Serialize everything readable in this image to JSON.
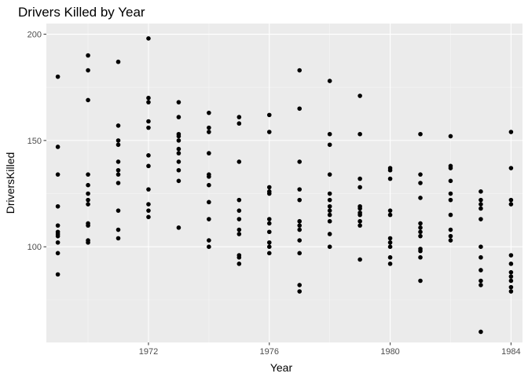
{
  "chart_data": {
    "type": "scatter",
    "title": "Drivers Killed by Year",
    "xlabel": "Year",
    "ylabel": "DriversKilled",
    "xlim": [
      1968.62,
      1984.38
    ],
    "ylim": [
      55,
      205
    ],
    "x_ticks": [
      1972,
      1976,
      1980,
      1984
    ],
    "y_ticks": [
      100,
      150,
      200
    ],
    "grid": true,
    "legend": "none",
    "colors": {
      "panel": "#ebebeb",
      "grid_major": "#ffffff",
      "grid_minor": "#f5f5f5",
      "point": "#000000",
      "tick": "#333333"
    },
    "points": [
      {
        "x": 1969,
        "y": 180
      },
      {
        "x": 1969,
        "y": 147
      },
      {
        "x": 1969,
        "y": 134
      },
      {
        "x": 1969,
        "y": 119
      },
      {
        "x": 1969,
        "y": 110
      },
      {
        "x": 1969,
        "y": 107
      },
      {
        "x": 1969,
        "y": 106
      },
      {
        "x": 1969,
        "y": 105
      },
      {
        "x": 1969,
        "y": 102
      },
      {
        "x": 1969,
        "y": 97
      },
      {
        "x": 1969,
        "y": 87
      },
      {
        "x": 1970,
        "y": 190
      },
      {
        "x": 1970,
        "y": 183
      },
      {
        "x": 1970,
        "y": 169
      },
      {
        "x": 1970,
        "y": 134
      },
      {
        "x": 1970,
        "y": 129
      },
      {
        "x": 1970,
        "y": 125
      },
      {
        "x": 1970,
        "y": 122
      },
      {
        "x": 1970,
        "y": 120
      },
      {
        "x": 1970,
        "y": 111
      },
      {
        "x": 1970,
        "y": 110
      },
      {
        "x": 1970,
        "y": 103
      },
      {
        "x": 1970,
        "y": 102
      },
      {
        "x": 1971,
        "y": 187
      },
      {
        "x": 1971,
        "y": 157
      },
      {
        "x": 1971,
        "y": 150
      },
      {
        "x": 1971,
        "y": 148
      },
      {
        "x": 1971,
        "y": 140
      },
      {
        "x": 1971,
        "y": 136
      },
      {
        "x": 1971,
        "y": 134
      },
      {
        "x": 1971,
        "y": 130
      },
      {
        "x": 1971,
        "y": 117
      },
      {
        "x": 1971,
        "y": 108
      },
      {
        "x": 1971,
        "y": 104
      },
      {
        "x": 1972,
        "y": 198
      },
      {
        "x": 1972,
        "y": 170
      },
      {
        "x": 1972,
        "y": 168
      },
      {
        "x": 1972,
        "y": 159
      },
      {
        "x": 1972,
        "y": 156
      },
      {
        "x": 1972,
        "y": 143
      },
      {
        "x": 1972,
        "y": 138
      },
      {
        "x": 1972,
        "y": 127
      },
      {
        "x": 1972,
        "y": 120
      },
      {
        "x": 1972,
        "y": 117
      },
      {
        "x": 1972,
        "y": 114
      },
      {
        "x": 1973,
        "y": 168
      },
      {
        "x": 1973,
        "y": 161
      },
      {
        "x": 1973,
        "y": 153
      },
      {
        "x": 1973,
        "y": 152
      },
      {
        "x": 1973,
        "y": 150
      },
      {
        "x": 1973,
        "y": 146
      },
      {
        "x": 1973,
        "y": 144
      },
      {
        "x": 1973,
        "y": 140
      },
      {
        "x": 1973,
        "y": 136
      },
      {
        "x": 1973,
        "y": 131
      },
      {
        "x": 1973,
        "y": 109
      },
      {
        "x": 1974,
        "y": 163
      },
      {
        "x": 1974,
        "y": 156
      },
      {
        "x": 1974,
        "y": 154
      },
      {
        "x": 1974,
        "y": 144
      },
      {
        "x": 1974,
        "y": 134
      },
      {
        "x": 1974,
        "y": 133
      },
      {
        "x": 1974,
        "y": 129
      },
      {
        "x": 1974,
        "y": 121
      },
      {
        "x": 1974,
        "y": 113
      },
      {
        "x": 1974,
        "y": 103
      },
      {
        "x": 1974,
        "y": 100
      },
      {
        "x": 1975,
        "y": 161
      },
      {
        "x": 1975,
        "y": 158
      },
      {
        "x": 1975,
        "y": 140
      },
      {
        "x": 1975,
        "y": 122
      },
      {
        "x": 1975,
        "y": 117
      },
      {
        "x": 1975,
        "y": 113
      },
      {
        "x": 1975,
        "y": 108
      },
      {
        "x": 1975,
        "y": 106
      },
      {
        "x": 1975,
        "y": 96
      },
      {
        "x": 1975,
        "y": 95
      },
      {
        "x": 1975,
        "y": 92
      },
      {
        "x": 1976,
        "y": 162
      },
      {
        "x": 1976,
        "y": 154
      },
      {
        "x": 1976,
        "y": 128
      },
      {
        "x": 1976,
        "y": 126
      },
      {
        "x": 1976,
        "y": 125
      },
      {
        "x": 1976,
        "y": 113
      },
      {
        "x": 1976,
        "y": 111
      },
      {
        "x": 1976,
        "y": 107
      },
      {
        "x": 1976,
        "y": 102
      },
      {
        "x": 1976,
        "y": 100
      },
      {
        "x": 1976,
        "y": 97
      },
      {
        "x": 1977,
        "y": 183
      },
      {
        "x": 1977,
        "y": 165
      },
      {
        "x": 1977,
        "y": 140
      },
      {
        "x": 1977,
        "y": 127
      },
      {
        "x": 1977,
        "y": 122
      },
      {
        "x": 1977,
        "y": 112
      },
      {
        "x": 1977,
        "y": 110
      },
      {
        "x": 1977,
        "y": 108
      },
      {
        "x": 1977,
        "y": 103
      },
      {
        "x": 1977,
        "y": 97
      },
      {
        "x": 1977,
        "y": 82
      },
      {
        "x": 1977,
        "y": 79
      },
      {
        "x": 1978,
        "y": 178
      },
      {
        "x": 1978,
        "y": 153
      },
      {
        "x": 1978,
        "y": 148
      },
      {
        "x": 1978,
        "y": 134
      },
      {
        "x": 1978,
        "y": 125
      },
      {
        "x": 1978,
        "y": 122
      },
      {
        "x": 1978,
        "y": 119
      },
      {
        "x": 1978,
        "y": 117
      },
      {
        "x": 1978,
        "y": 115
      },
      {
        "x": 1978,
        "y": 112
      },
      {
        "x": 1978,
        "y": 106
      },
      {
        "x": 1978,
        "y": 100
      },
      {
        "x": 1979,
        "y": 171
      },
      {
        "x": 1979,
        "y": 153
      },
      {
        "x": 1979,
        "y": 132
      },
      {
        "x": 1979,
        "y": 128
      },
      {
        "x": 1979,
        "y": 119
      },
      {
        "x": 1979,
        "y": 118
      },
      {
        "x": 1979,
        "y": 116
      },
      {
        "x": 1979,
        "y": 115
      },
      {
        "x": 1979,
        "y": 112
      },
      {
        "x": 1979,
        "y": 110
      },
      {
        "x": 1979,
        "y": 94
      },
      {
        "x": 1980,
        "y": 137
      },
      {
        "x": 1980,
        "y": 136
      },
      {
        "x": 1980,
        "y": 132
      },
      {
        "x": 1980,
        "y": 117
      },
      {
        "x": 1980,
        "y": 115
      },
      {
        "x": 1980,
        "y": 104
      },
      {
        "x": 1980,
        "y": 102
      },
      {
        "x": 1980,
        "y": 100
      },
      {
        "x": 1980,
        "y": 95
      },
      {
        "x": 1980,
        "y": 92
      },
      {
        "x": 1981,
        "y": 153
      },
      {
        "x": 1981,
        "y": 134
      },
      {
        "x": 1981,
        "y": 130
      },
      {
        "x": 1981,
        "y": 123
      },
      {
        "x": 1981,
        "y": 111
      },
      {
        "x": 1981,
        "y": 109
      },
      {
        "x": 1981,
        "y": 107
      },
      {
        "x": 1981,
        "y": 105
      },
      {
        "x": 1981,
        "y": 99
      },
      {
        "x": 1981,
        "y": 98
      },
      {
        "x": 1981,
        "y": 95
      },
      {
        "x": 1981,
        "y": 84
      },
      {
        "x": 1982,
        "y": 152
      },
      {
        "x": 1982,
        "y": 138
      },
      {
        "x": 1982,
        "y": 137
      },
      {
        "x": 1982,
        "y": 131
      },
      {
        "x": 1982,
        "y": 125
      },
      {
        "x": 1982,
        "y": 122
      },
      {
        "x": 1982,
        "y": 115
      },
      {
        "x": 1982,
        "y": 108
      },
      {
        "x": 1982,
        "y": 105
      },
      {
        "x": 1982,
        "y": 103
      },
      {
        "x": 1983,
        "y": 126
      },
      {
        "x": 1983,
        "y": 122
      },
      {
        "x": 1983,
        "y": 120
      },
      {
        "x": 1983,
        "y": 118
      },
      {
        "x": 1983,
        "y": 113
      },
      {
        "x": 1983,
        "y": 100
      },
      {
        "x": 1983,
        "y": 95
      },
      {
        "x": 1983,
        "y": 89
      },
      {
        "x": 1983,
        "y": 84
      },
      {
        "x": 1983,
        "y": 82
      },
      {
        "x": 1983,
        "y": 60
      },
      {
        "x": 1984,
        "y": 154
      },
      {
        "x": 1984,
        "y": 137
      },
      {
        "x": 1984,
        "y": 122
      },
      {
        "x": 1984,
        "y": 120
      },
      {
        "x": 1984,
        "y": 96
      },
      {
        "x": 1984,
        "y": 92
      },
      {
        "x": 1984,
        "y": 88
      },
      {
        "x": 1984,
        "y": 86
      },
      {
        "x": 1984,
        "y": 84
      },
      {
        "x": 1984,
        "y": 81
      },
      {
        "x": 1984,
        "y": 79
      }
    ]
  }
}
